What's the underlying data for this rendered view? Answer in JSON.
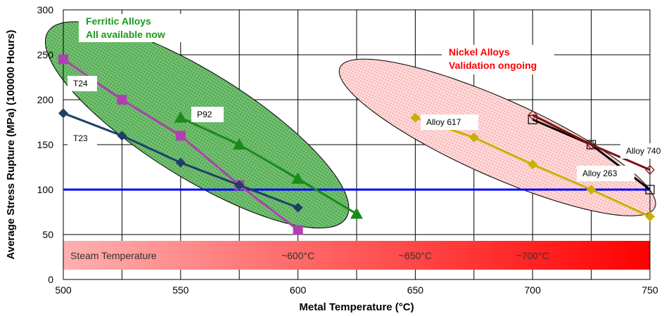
{
  "chart_data": {
    "type": "line",
    "xlabel": "Metal Temperature (°C)",
    "ylabel": "Average Stress Rupture (MPa) (100000 Hours)",
    "xlim": [
      500,
      750
    ],
    "ylim": [
      0,
      300
    ],
    "x_ticks": [
      "500",
      "550",
      "600",
      "650",
      "700",
      "750"
    ],
    "y_ticks": [
      "0",
      "50",
      "100",
      "150",
      "200",
      "250",
      "300"
    ],
    "grid": true,
    "groups": [
      {
        "lines": [
          "Ferritic Alloys",
          "All available now"
        ],
        "color": "#1a9a1a"
      },
      {
        "lines": [
          "Nickel Alloys",
          "Validation ongoing"
        ],
        "color": "#ff0000"
      }
    ],
    "reference_line": {
      "y": 100,
      "color": "#0000ff"
    },
    "series": [
      {
        "name": "T24",
        "color": "#b040b0",
        "marker": "square",
        "x": [
          500,
          525,
          550,
          575,
          600
        ],
        "y": [
          245,
          200,
          160,
          105,
          55
        ]
      },
      {
        "name": "T23",
        "color": "#1f3f66",
        "marker": "diamond",
        "x": [
          500,
          525,
          550,
          575,
          600
        ],
        "y": [
          185,
          160,
          130,
          105,
          80
        ]
      },
      {
        "name": "P92",
        "color": "#1a8a1a",
        "marker": "triangle",
        "x": [
          550,
          575,
          600,
          625
        ],
        "y": [
          180,
          150,
          112,
          73
        ]
      },
      {
        "name": "Alloy 617",
        "color": "#c8b000",
        "marker": "diamond",
        "x": [
          650,
          675,
          700,
          725,
          750
        ],
        "y": [
          180,
          158,
          128,
          100,
          70
        ]
      },
      {
        "name": "Alloy 263",
        "color": "#000000",
        "marker": "square-open",
        "x": [
          700,
          725,
          750
        ],
        "y": [
          178,
          150,
          100
        ]
      },
      {
        "name": "Alloy 740",
        "color": "#7a1010",
        "marker": "diamond-open",
        "x": [
          700,
          725,
          750
        ],
        "y": [
          183,
          150,
          122
        ]
      }
    ],
    "steam_band": {
      "label": "Steam Temperature",
      "marks": [
        "~600°C",
        "~650°C",
        "~700°C"
      ]
    }
  }
}
